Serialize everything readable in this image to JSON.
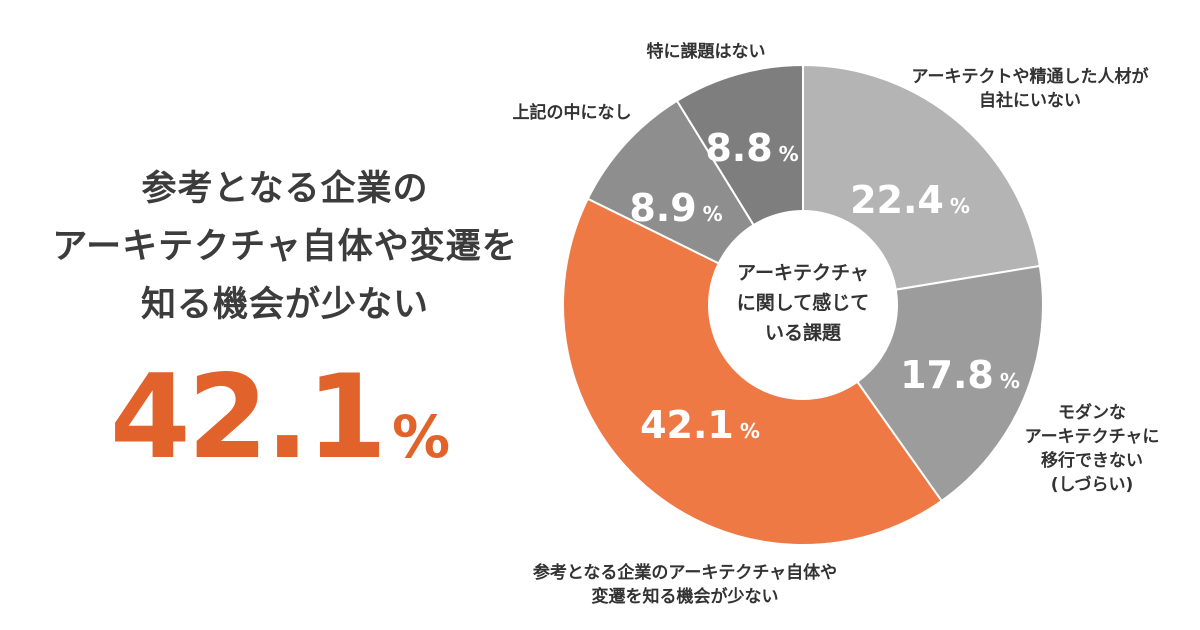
{
  "headline": {
    "lines": [
      "参考となる企業の",
      "アーキテクチャ自体や変遷を",
      "知る機会が少ない"
    ],
    "value": "42.1",
    "unit": "%"
  },
  "colors": {
    "accent": "#e2622b",
    "headline_text": "#3c3c3c"
  },
  "chart_data": {
    "type": "pie",
    "variant": "donut",
    "center_label": [
      "アーキテクチャ",
      "に関して感じて",
      "いる課題"
    ],
    "unit": "%",
    "slices": [
      {
        "id": "no-experts",
        "label": [
          "アーキテクトや精通した人材が",
          "自社にいない"
        ],
        "value": 22.4,
        "value_text": "22.4",
        "color": "#b4b4b4"
      },
      {
        "id": "hard-to-migrate",
        "label": [
          "モダンな",
          "アーキテクチャに",
          "移行できない",
          "(しづらい)"
        ],
        "value": 17.8,
        "value_text": "17.8",
        "color": "#9c9c9c"
      },
      {
        "id": "few-references",
        "label": [
          "参考となる企業のアーキテクチャ自体や",
          "変遷を知る機会が少ない"
        ],
        "value": 42.1,
        "value_text": "42.1",
        "color": "#ef7945"
      },
      {
        "id": "none-of-above",
        "label": [
          "上記の中になし"
        ],
        "value": 8.9,
        "value_text": "8.9",
        "color": "#8e8e8e"
      },
      {
        "id": "no-issues",
        "label": [
          "特に課題はない"
        ],
        "value": 8.8,
        "value_text": "8.8",
        "color": "#7e7e7e"
      }
    ]
  }
}
